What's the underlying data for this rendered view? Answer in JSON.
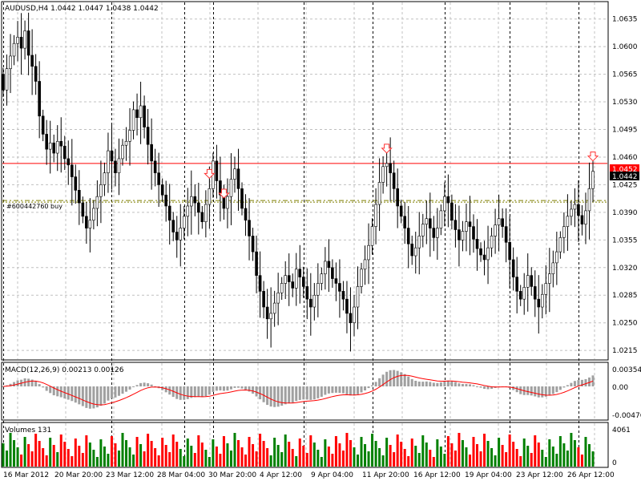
{
  "header": {
    "symbol_info": "AUDUSD,H4  1.0442 1.0447 1.0438 1.0442"
  },
  "colors": {
    "background": "#ffffff",
    "grid": "#c0c0c0",
    "candle_body": "#000000",
    "bid_line": "#ff0000",
    "order_line": "#7f7f00",
    "arrow": "#ff3030",
    "macd_hist": "#a0a0a0",
    "macd_signal": "#ff0000",
    "vol_up": "#008000",
    "vol_down": "#ff0000"
  },
  "price_labels": {
    "bid": "1.0452",
    "last": "1.0442"
  },
  "order_label": "#600442760 buy",
  "macd": {
    "title": "MACD(12,26,9) 0.00213 0.00126",
    "ticks": [
      "0.00354",
      "0.00",
      "-0.00476"
    ]
  },
  "volumes": {
    "title": "Volumes 131",
    "ticks": [
      "4061",
      "0"
    ]
  },
  "chart_data": {
    "type": "candlestick",
    "symbol": "AUDUSD",
    "timeframe": "H4",
    "y_ticks": [
      "1.0635",
      "1.0600",
      "1.0565",
      "1.0530",
      "1.0495",
      "1.0460",
      "1.0425",
      "1.0390",
      "1.0355",
      "1.0320",
      "1.0285",
      "1.0250",
      "1.0215"
    ],
    "ylim": [
      1.0205,
      1.0655
    ],
    "x_ticks": [
      "16 Mar 2012",
      "20 Mar 20:00",
      "23 Mar 12:00",
      "28 Mar 04:00",
      "30 Mar 20:00",
      "4 Apr 12:00",
      "9 Apr 04:00",
      "11 Apr 20:00",
      "16 Apr 12:00",
      "19 Apr 04:00",
      "23 Apr 12:00",
      "26 Apr 12:00"
    ],
    "bid_price": 1.0452,
    "order_price": 1.0405,
    "series": [
      {
        "name": "AUDUSD,H4",
        "close": [
          1.0545,
          1.0572,
          1.0588,
          1.0604,
          1.0612,
          1.0598,
          1.062,
          1.0589,
          1.0575,
          1.0556,
          1.0512,
          1.0489,
          1.047,
          1.0478,
          1.0465,
          1.048,
          1.0474,
          1.0458,
          1.045,
          1.0435,
          1.0418,
          1.0402,
          1.0385,
          1.037,
          1.038,
          1.0395,
          1.041,
          1.0425,
          1.044,
          1.0468,
          1.0455,
          1.044,
          1.0458,
          1.0475,
          1.048,
          1.0494,
          1.052,
          1.051,
          1.0525,
          1.0498,
          1.0476,
          1.0455,
          1.044,
          1.0425,
          1.0412,
          1.0398,
          1.038,
          1.0365,
          1.0355,
          1.037,
          1.0385,
          1.0398,
          1.041,
          1.0402,
          1.039,
          1.0378,
          1.04,
          1.042,
          1.0455,
          1.043,
          1.0412,
          1.0395,
          1.041,
          1.0432,
          1.0445,
          1.042,
          1.0395,
          1.038,
          1.036,
          1.034,
          1.031,
          1.029,
          1.027,
          1.0255,
          1.0262,
          1.0275,
          1.0288,
          1.03,
          1.031,
          1.0302,
          1.0294,
          1.0318,
          1.0308,
          1.0296,
          1.028,
          1.027,
          1.0285,
          1.03,
          1.0312,
          1.0328,
          1.032,
          1.0306,
          1.03,
          1.029,
          1.028,
          1.0262,
          1.025,
          1.027,
          1.0296,
          1.0318,
          1.033,
          1.0348,
          1.0372,
          1.04,
          1.0428,
          1.0448,
          1.0452,
          1.044,
          1.042,
          1.0398,
          1.0385,
          1.037,
          1.035,
          1.0335,
          1.0345,
          1.036,
          1.0375,
          1.0382,
          1.037,
          1.0358,
          1.037,
          1.0392,
          1.041,
          1.0402,
          1.038,
          1.0368,
          1.0355,
          1.0366,
          1.0378,
          1.0372,
          1.0356,
          1.0344,
          1.0336,
          1.033,
          1.0345,
          1.036,
          1.0374,
          1.0382,
          1.0372,
          1.0352,
          1.033,
          1.0308,
          1.029,
          1.028,
          1.0295,
          1.031,
          1.0296,
          1.028,
          1.027,
          1.0286,
          1.03,
          1.0312,
          1.0326,
          1.034,
          1.0358,
          1.0372,
          1.0385,
          1.0394,
          1.04,
          1.0386,
          1.0375,
          1.0392,
          1.042,
          1.0442
        ]
      }
    ],
    "arrows_at_index": [
      57,
      61,
      106,
      163
    ]
  }
}
